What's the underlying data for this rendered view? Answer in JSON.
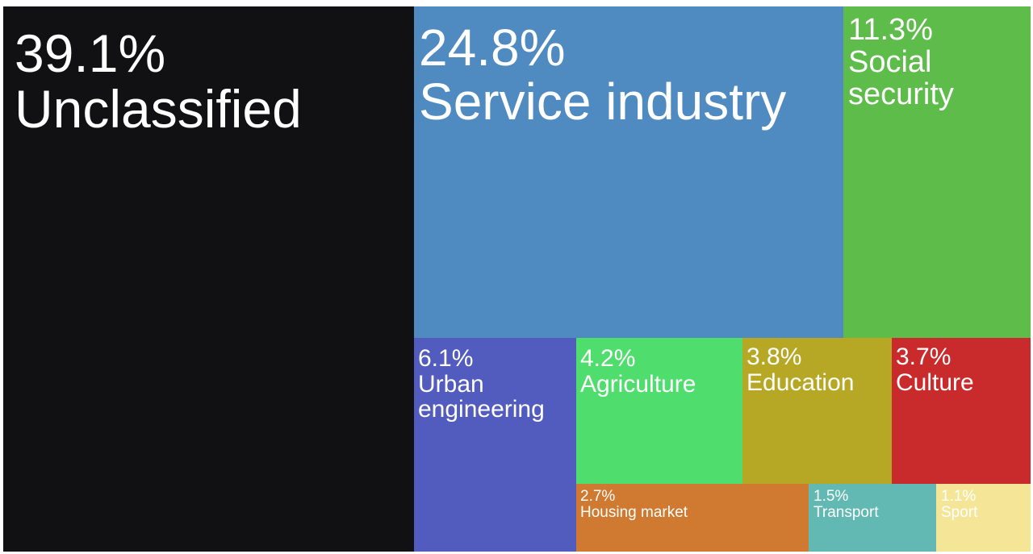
{
  "chart_data": {
    "type": "treemap",
    "title": "",
    "unit": "%",
    "items": [
      {
        "pct": "39.1%",
        "name": "Unclassified",
        "value": 39.1,
        "color": "#111113"
      },
      {
        "pct": "24.8%",
        "name": "Service industry",
        "value": 24.8,
        "color": "#4f8bc1"
      },
      {
        "pct": "11.3%",
        "name": "Social security",
        "value": 11.3,
        "color": "#5ebc4a"
      },
      {
        "pct": "6.1%",
        "name": "Urban engineering",
        "value": 6.1,
        "color": "#525cbe"
      },
      {
        "pct": "4.2%",
        "name": "Agriculture",
        "value": 4.2,
        "color": "#4fde6d"
      },
      {
        "pct": "3.8%",
        "name": "Education",
        "value": 3.8,
        "color": "#b6a824"
      },
      {
        "pct": "3.7%",
        "name": "Culture",
        "value": 3.7,
        "color": "#c92a2b"
      },
      {
        "pct": "2.7%",
        "name": "Housing market",
        "value": 2.7,
        "color": "#cf7a30"
      },
      {
        "pct": "1.5%",
        "name": "Transport",
        "value": 1.5,
        "color": "#62b9b4"
      },
      {
        "pct": "1.1%",
        "name": "Sport",
        "value": 1.1,
        "color": "#f5e697"
      }
    ]
  }
}
